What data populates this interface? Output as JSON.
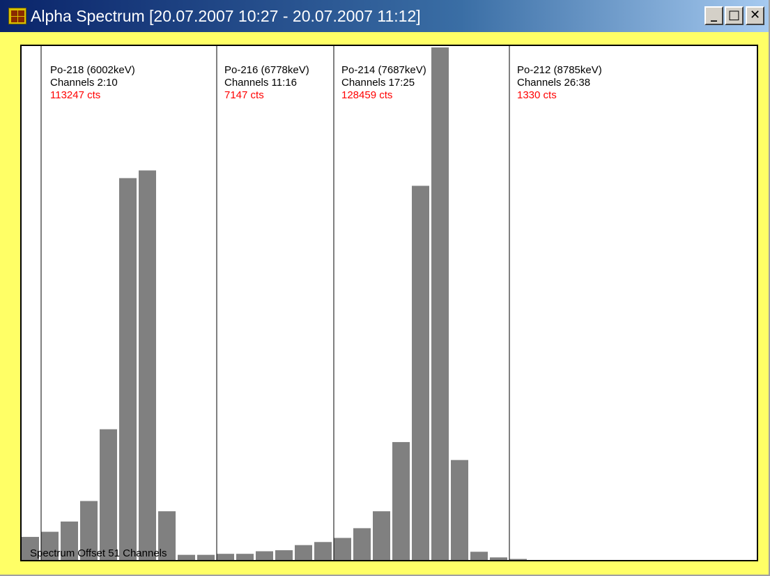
{
  "window": {
    "title": "Alpha Spectrum [20.07.2007 10:27 - 20.07.2007 11:12]",
    "icon": "radon-app-icon",
    "controls": [
      "minimize",
      "maximize",
      "close"
    ],
    "minimize_glyph": "_",
    "maximize_glyph": "□",
    "close_glyph": "✕"
  },
  "colors": {
    "background": "#ffff66",
    "bar": "#808080",
    "counts_text": "#ff0000"
  },
  "spectrum": {
    "offset_label": "Spectrum Offset 51 Channels"
  },
  "chart_data": {
    "type": "bar",
    "title": "",
    "xlabel": "",
    "ylabel": "",
    "x": [
      1,
      2,
      3,
      4,
      5,
      6,
      7,
      8,
      9,
      10,
      11,
      12,
      13,
      14,
      15,
      16,
      17,
      18,
      19,
      20,
      21,
      22,
      23,
      24,
      25,
      26,
      27
    ],
    "values": [
      4.5,
      5.5,
      7.5,
      11.5,
      25.5,
      74.5,
      76,
      9.5,
      1,
      1,
      1.2,
      1.2,
      1.7,
      1.9,
      2.9,
      3.5,
      4.3,
      6.2,
      9.5,
      23,
      73,
      100,
      19.5,
      1.6,
      0.5,
      0.2,
      0
    ],
    "ylim": [
      0,
      100
    ],
    "grid": false,
    "regions": [
      {
        "name": "Po-218 (6002keV)",
        "channels": "Channels 2:10",
        "counts": "113247 cts",
        "start_channel": 2
      },
      {
        "name": "Po-216 (6778keV)",
        "channels": "Channels 11:16",
        "counts": "7147 cts",
        "start_channel": 11
      },
      {
        "name": "Po-214 (7687keV)",
        "channels": "Channels 17:25",
        "counts": "128459 cts",
        "start_channel": 17
      },
      {
        "name": "Po-212 (8785keV)",
        "channels": "Channels 26:38",
        "counts": "1330 cts",
        "start_channel": 26
      }
    ]
  }
}
